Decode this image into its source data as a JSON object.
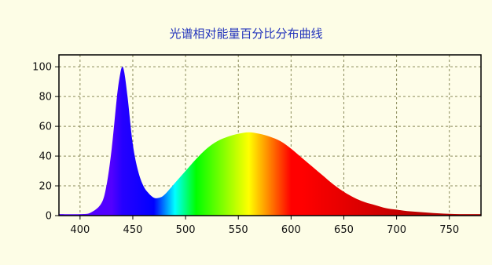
{
  "colors": {
    "panel_background": "#fdfde6",
    "plot_background": "#fefde8",
    "title": "#2233bb",
    "gridlines": "#8a8a5a"
  },
  "chart_data": {
    "type": "area",
    "title": "光谱相对能量百分比分布曲线",
    "xlabel": "",
    "ylabel": "",
    "xlim": [
      380,
      780
    ],
    "ylim": [
      0,
      108
    ],
    "x_ticks": [
      400,
      450,
      500,
      550,
      600,
      650,
      700,
      750
    ],
    "y_ticks": [
      0,
      20,
      40,
      60,
      80,
      100
    ],
    "x_tick_labels": [
      "400",
      "450",
      "500",
      "550",
      "600",
      "650",
      "700",
      "750"
    ],
    "y_tick_labels": [
      "0",
      "20",
      "40",
      "60",
      "80",
      "100"
    ],
    "grid": true,
    "fill": "spectral wavelength color gradient",
    "series": [
      {
        "x": [
          380,
          400,
          410,
          420,
          425,
          430,
          435,
          438,
          440,
          442,
          445,
          450,
          455,
          460,
          465,
          470,
          475,
          480,
          490,
          500,
          510,
          520,
          530,
          540,
          550,
          560,
          570,
          580,
          590,
          600,
          610,
          620,
          630,
          640,
          650,
          660,
          670,
          680,
          690,
          700,
          710,
          720,
          730,
          740,
          750,
          760,
          770,
          780
        ],
        "y": [
          1,
          1,
          2,
          8,
          20,
          45,
          80,
          95,
          100,
          96,
          80,
          48,
          30,
          20,
          15,
          12,
          12,
          14,
          22,
          30,
          38,
          45,
          50,
          53,
          55,
          56,
          55,
          53,
          50,
          45,
          39,
          33,
          27,
          21,
          16,
          12,
          9,
          7,
          5,
          4,
          3,
          2.5,
          2,
          1.5,
          1.2,
          1,
          1,
          1
        ]
      }
    ]
  }
}
